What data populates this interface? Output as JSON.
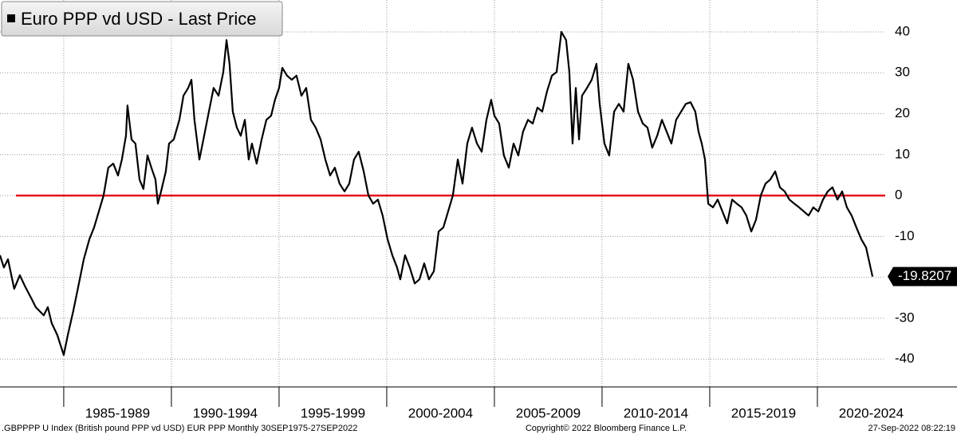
{
  "chart_data": {
    "type": "line",
    "title": "Euro PPP vd USD - Last Price",
    "series": [
      {
        "name": "Euro PPP vd USD",
        "color": "#000000",
        "x": [
          1982.04,
          1982.22,
          1982.41,
          1982.7,
          1982.96,
          1983.22,
          1983.52,
          1983.7,
          1984.07,
          1984.26,
          1984.44,
          1984.7,
          1985.0,
          1985.19,
          1985.44,
          1985.67,
          1985.93,
          1986.19,
          1986.41,
          1986.63,
          1986.85,
          1987.07,
          1987.3,
          1987.52,
          1987.7,
          1987.89,
          1987.96,
          1988.15,
          1988.33,
          1988.52,
          1988.7,
          1988.89,
          1989.07,
          1989.26,
          1989.37,
          1989.52,
          1989.74,
          1989.89,
          1990.11,
          1990.37,
          1990.56,
          1990.78,
          1990.93,
          1991.07,
          1991.3,
          1991.52,
          1991.74,
          1991.96,
          1992.19,
          1992.41,
          1992.56,
          1992.7,
          1992.85,
          1993.04,
          1993.22,
          1993.41,
          1993.59,
          1993.74,
          1993.96,
          1994.19,
          1994.41,
          1994.63,
          1994.81,
          1995.0,
          1995.15,
          1995.37,
          1995.59,
          1995.81,
          1996.04,
          1996.26,
          1996.48,
          1996.7,
          1996.93,
          1997.15,
          1997.37,
          1997.59,
          1997.81,
          1998.04,
          1998.26,
          1998.48,
          1998.7,
          1998.93,
          1999.15,
          1999.37,
          1999.59,
          1999.81,
          2000.04,
          2000.26,
          2000.48,
          2000.63,
          2000.85,
          2001.07,
          2001.3,
          2001.52,
          2001.74,
          2001.96,
          2002.19,
          2002.41,
          2002.63,
          2002.85,
          2003.07,
          2003.3,
          2003.52,
          2003.74,
          2003.96,
          2004.19,
          2004.41,
          2004.63,
          2004.85,
          2005.0,
          2005.22,
          2005.44,
          2005.67,
          2005.89,
          2006.11,
          2006.33,
          2006.56,
          2006.78,
          2007.0,
          2007.22,
          2007.44,
          2007.67,
          2007.89,
          2008.11,
          2008.33,
          2008.48,
          2008.63,
          2008.78,
          2008.93,
          2009.07,
          2009.3,
          2009.52,
          2009.74,
          2009.89,
          2010.11,
          2010.33,
          2010.56,
          2010.78,
          2011.0,
          2011.22,
          2011.44,
          2011.67,
          2011.89,
          2012.11,
          2012.33,
          2012.56,
          2012.78,
          2013.0,
          2013.22,
          2013.44,
          2013.67,
          2013.89,
          2014.11,
          2014.33,
          2014.48,
          2014.63,
          2014.78,
          2014.93,
          2015.15,
          2015.37,
          2015.59,
          2015.81,
          2016.04,
          2016.26,
          2016.48,
          2016.7,
          2016.93,
          2017.15,
          2017.37,
          2017.59,
          2017.81,
          2018.04,
          2018.26,
          2018.48,
          2018.7,
          2018.93,
          2019.15,
          2019.37,
          2019.59,
          2019.81,
          2020.04,
          2020.26,
          2020.48,
          2020.7,
          2020.93,
          2021.15,
          2021.37,
          2021.59,
          2021.81,
          2022.04,
          2022.26,
          2022.56
        ],
        "values": [
          -14.6,
          -17.6,
          -15.6,
          -22.8,
          -19.5,
          -22.4,
          -25.4,
          -27.3,
          -29.3,
          -27.3,
          -31.2,
          -34.1,
          -39.0,
          -34.1,
          -28.3,
          -22.4,
          -15.6,
          -10.7,
          -7.8,
          -3.9,
          0,
          6.8,
          7.8,
          4.9,
          8.8,
          14.6,
          22.0,
          13.7,
          12.7,
          3.9,
          1.6,
          9.8,
          6.8,
          3.9,
          -2.0,
          1.0,
          5.9,
          12.7,
          13.7,
          18.5,
          24.4,
          26.3,
          28.3,
          18.5,
          8.8,
          14.6,
          20.5,
          26.3,
          24.4,
          30.2,
          38.0,
          32.2,
          20.5,
          16.6,
          14.6,
          18.5,
          8.8,
          12.7,
          7.8,
          13.7,
          18.5,
          19.5,
          23.4,
          26.3,
          31.2,
          29.3,
          28.3,
          29.3,
          24.4,
          26.3,
          18.5,
          16.6,
          13.7,
          8.8,
          4.9,
          6.8,
          2.9,
          1.0,
          2.9,
          8.8,
          10.7,
          5.9,
          0,
          -2.0,
          -1.0,
          -4.9,
          -10.7,
          -14.6,
          -17.6,
          -20.5,
          -14.6,
          -17.6,
          -21.5,
          -20.5,
          -16.6,
          -20.5,
          -18.5,
          -8.8,
          -7.8,
          -3.9,
          0,
          8.8,
          2.9,
          12.7,
          16.6,
          12.7,
          10.7,
          18.5,
          23.4,
          19.5,
          17.6,
          9.8,
          6.8,
          12.7,
          9.8,
          15.6,
          18.5,
          17.6,
          21.5,
          20.5,
          25.4,
          29.3,
          30.2,
          40.0,
          38.0,
          30.2,
          12.7,
          26.3,
          13.7,
          24.4,
          26.3,
          28.3,
          32.2,
          22.4,
          12.7,
          9.8,
          20.5,
          22.4,
          20.5,
          32.2,
          28.3,
          20.5,
          17.6,
          16.6,
          11.7,
          14.6,
          18.5,
          15.6,
          12.7,
          18.5,
          20.5,
          22.4,
          22.8,
          20.5,
          15.6,
          12.7,
          8.8,
          -2.0,
          -2.9,
          -1.0,
          -3.9,
          -6.8,
          -1.0,
          -2.0,
          -2.9,
          -4.9,
          -8.8,
          -5.9,
          0,
          2.9,
          3.9,
          5.9,
          2.0,
          1.0,
          -1.0,
          -2.0,
          -2.9,
          -3.9,
          -4.9,
          -2.9,
          -3.9,
          -1.0,
          1.0,
          2.0,
          -1.0,
          1.0,
          -2.9,
          -4.9,
          -7.8,
          -10.7,
          -12.7,
          -19.8207
        ]
      }
    ],
    "xlim": [
      1982.04,
      2023.15
    ],
    "xticks": [
      {
        "value": 1985,
        "label": "1985-1989"
      },
      {
        "value": 1990,
        "label": "1990-1994"
      },
      {
        "value": 1995,
        "label": "1995-1999"
      },
      {
        "value": 2000,
        "label": "2000-2004"
      },
      {
        "value": 2005,
        "label": "2005-2009"
      },
      {
        "value": 2010,
        "label": "2010-2014"
      },
      {
        "value": 2015,
        "label": "2015-2019"
      },
      {
        "value": 2020,
        "label": "2020-2024"
      }
    ],
    "ylim": [
      -46.8,
      47.8
    ],
    "yticks": [
      -40,
      -30,
      -20,
      -10,
      0,
      10,
      20,
      30,
      40
    ],
    "grid": true,
    "y_axis_side": "right",
    "reference_line": {
      "value": 0,
      "color": "#e8111b"
    },
    "footnotes": {
      "left": ".GBPPPP U Index (British pound PPP vd USD) EUR PPP  Monthly 30SEP1975-27SEP2022",
      "center": "Copyright© 2022 Bloomberg Finance L.P.",
      "right": "27-Sep-2022 08:22:19"
    }
  }
}
